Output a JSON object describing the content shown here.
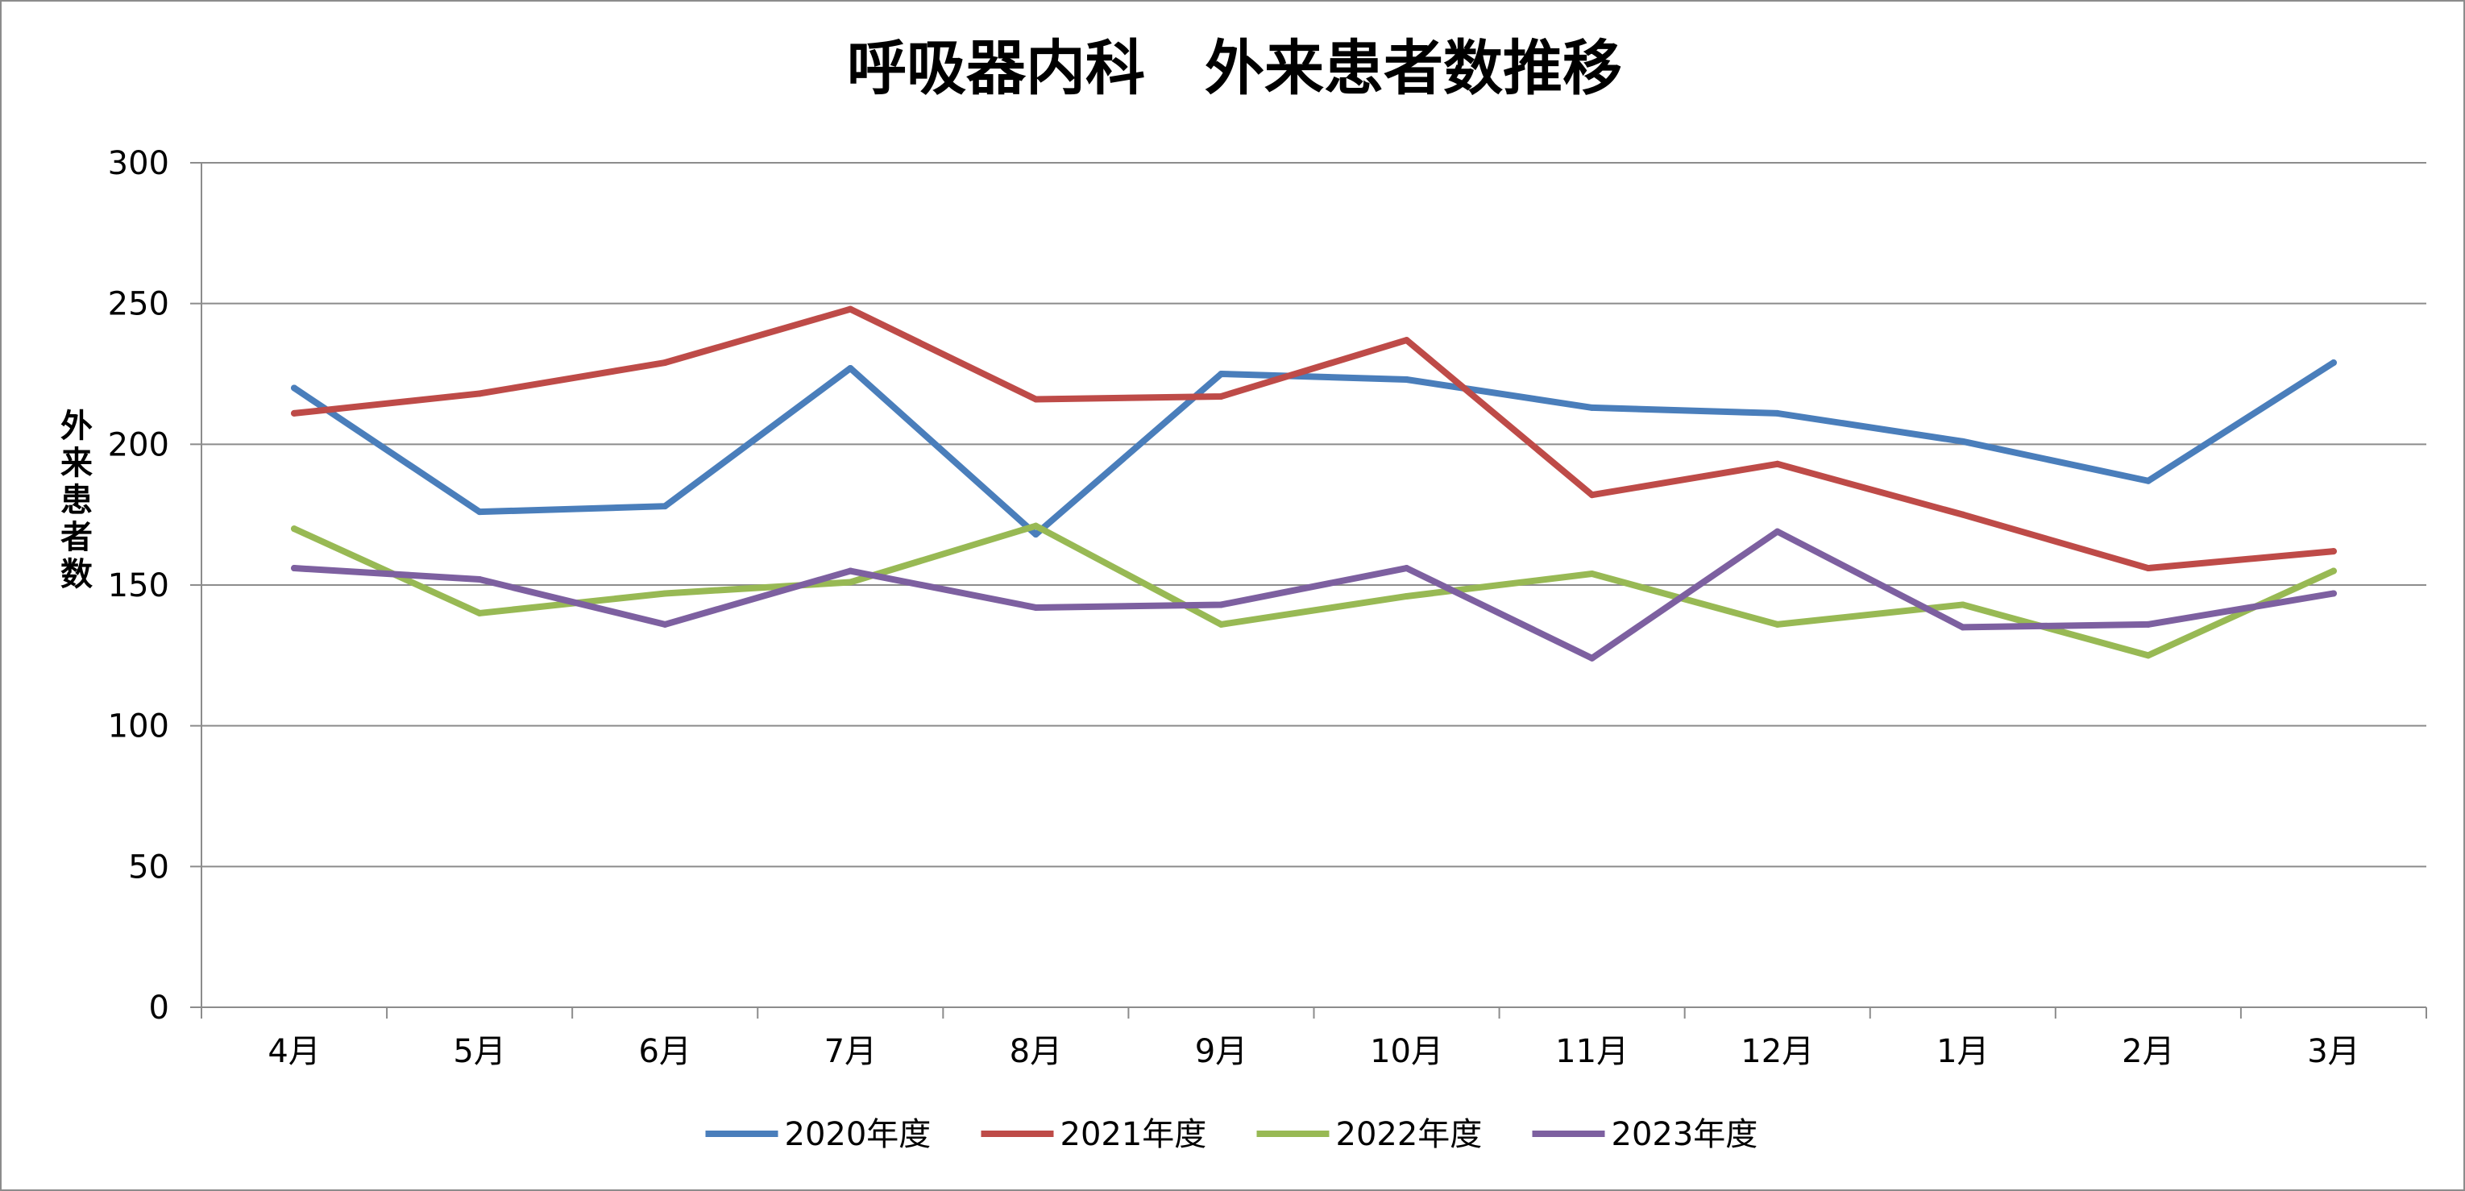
{
  "chart_data": {
    "type": "line",
    "title": "呼吸器内科　外来患者数推移",
    "ylabel": "外来患者数",
    "xlabel": "",
    "categories": [
      "4月",
      "5月",
      "6月",
      "7月",
      "8月",
      "9月",
      "10月",
      "11月",
      "12月",
      "1月",
      "2月",
      "3月"
    ],
    "ylim": [
      0,
      300
    ],
    "yticks": [
      0,
      50,
      100,
      150,
      200,
      250,
      300
    ],
    "grid": true,
    "legend_position": "bottom",
    "series": [
      {
        "name": "2020年度",
        "color": "#4a7ebb",
        "values": [
          220,
          176,
          178,
          227,
          168,
          225,
          223,
          213,
          211,
          201,
          187,
          229
        ]
      },
      {
        "name": "2021年度",
        "color": "#be4b48",
        "values": [
          211,
          218,
          229,
          248,
          216,
          217,
          237,
          182,
          193,
          175,
          156,
          162
        ]
      },
      {
        "name": "2022年度",
        "color": "#98b954",
        "values": [
          170,
          140,
          147,
          151,
          171,
          136,
          146,
          154,
          136,
          143,
          125,
          155
        ]
      },
      {
        "name": "2023年度",
        "color": "#7d60a0",
        "values": [
          156,
          152,
          136,
          155,
          142,
          143,
          156,
          124,
          169,
          135,
          136,
          147
        ]
      }
    ]
  }
}
